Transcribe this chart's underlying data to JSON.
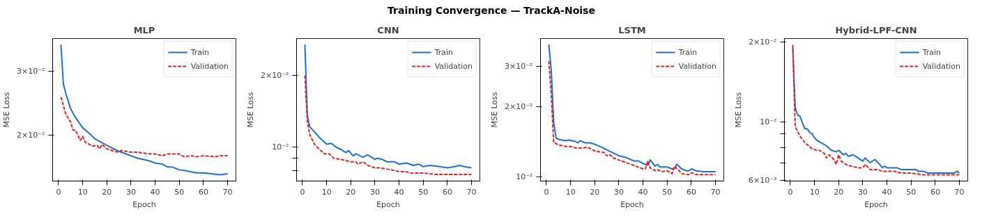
{
  "chart_data": [
    {
      "type": "line",
      "title": "MLP",
      "annotations": [
        "Training Convergence — TrackA-Noise"
      ],
      "xlabel": "Epoch",
      "ylabel": "MSE Loss",
      "log": "y",
      "grid": false,
      "legend": "top right",
      "xlim": [
        -2.45,
        73.45
      ],
      "xticks": [
        0,
        10,
        20,
        30,
        40,
        50,
        60,
        70
      ],
      "ylim": [
        0.015,
        0.0369
      ],
      "yticks": [
        {
          "value": 0.02,
          "label": "2×10⁻²"
        },
        {
          "value": 0.03,
          "label": "3×10⁻²"
        }
      ],
      "series": [
        {
          "name": "Train",
          "color": "#1f6fcf",
          "line_style": "solid",
          "x": [
            1,
            2,
            3,
            5,
            7,
            10,
            13,
            15,
            20,
            22,
            25,
            28,
            30,
            33,
            35,
            38,
            40,
            43,
            45,
            47,
            50,
            53,
            55,
            57,
            60,
            63,
            67,
            70
          ],
          "values": [
            0.0355,
            0.0277,
            0.0261,
            0.0237,
            0.0224,
            0.021,
            0.0202,
            0.0196,
            0.0188,
            0.0185,
            0.0181,
            0.0178,
            0.0176,
            0.0173,
            0.0172,
            0.017,
            0.0168,
            0.0167,
            0.0164,
            0.0164,
            0.0161,
            0.016,
            0.0159,
            0.0158,
            0.0158,
            0.0157,
            0.0156,
            0.0157
          ]
        },
        {
          "name": "Validation",
          "color": "#d62728",
          "line_style": "dashed",
          "x": [
            1,
            3,
            5,
            6,
            7,
            9,
            10,
            11,
            14,
            16,
            17,
            18,
            20,
            23,
            25,
            26,
            28,
            30,
            33,
            35,
            38,
            40,
            43,
            45,
            50,
            52,
            55,
            57,
            60,
            65,
            67,
            70
          ],
          "values": [
            0.0255,
            0.0229,
            0.0218,
            0.0207,
            0.0207,
            0.0194,
            0.0199,
            0.0192,
            0.0187,
            0.0188,
            0.0184,
            0.0189,
            0.0184,
            0.0181,
            0.018,
            0.0182,
            0.0181,
            0.018,
            0.018,
            0.0179,
            0.0178,
            0.0178,
            0.0176,
            0.0178,
            0.0178,
            0.0175,
            0.0176,
            0.0175,
            0.0176,
            0.0175,
            0.0176,
            0.0176
          ]
        }
      ]
    },
    {
      "type": "line",
      "title": "CNN",
      "xlabel": "Epoch",
      "ylabel": "MSE Loss",
      "log": "y",
      "grid": false,
      "legend": "top right",
      "xlim": [
        -2.45,
        73.45
      ],
      "xticks": [
        0,
        10,
        20,
        30,
        40,
        50,
        60,
        70
      ],
      "ylim": [
        0.00722,
        0.0286
      ],
      "yticks": [
        {
          "value": 0.008,
          "label": null
        },
        {
          "value": 0.009,
          "label": null
        },
        {
          "value": 0.01,
          "label": "10⁻²"
        },
        {
          "value": 0.02,
          "label": "2×10⁻²"
        }
      ],
      "series": [
        {
          "name": "Train",
          "color": "#1f6fcf",
          "line_style": "solid",
          "x": [
            1,
            2,
            3,
            5,
            7,
            10,
            12,
            14,
            16,
            18,
            19,
            21,
            22,
            25,
            27,
            30,
            31,
            33,
            35,
            38,
            40,
            43,
            46,
            48,
            50,
            53,
            57,
            60,
            63,
            65,
            67,
            70
          ],
          "values": [
            0.027,
            0.0137,
            0.0122,
            0.0116,
            0.011,
            0.0103,
            0.0104,
            0.01,
            0.0098,
            0.0095,
            0.0097,
            0.0092,
            0.0094,
            0.0091,
            0.0093,
            0.0089,
            0.009,
            0.0089,
            0.0087,
            0.0087,
            0.0085,
            0.0086,
            0.0084,
            0.0085,
            0.0083,
            0.0084,
            0.0083,
            0.0082,
            0.0083,
            0.0084,
            0.0083,
            0.0082
          ]
        },
        {
          "name": "Validation",
          "color": "#d62728",
          "line_style": "dashed",
          "x": [
            1,
            2,
            3,
            5,
            7,
            9,
            11,
            13,
            16,
            18,
            20,
            22,
            23,
            25,
            27,
            30,
            32,
            35,
            38,
            40,
            43,
            45,
            50,
            55,
            60,
            70
          ],
          "values": [
            0.02,
            0.0129,
            0.0113,
            0.0103,
            0.0098,
            0.0094,
            0.0094,
            0.009,
            0.0089,
            0.0088,
            0.0087,
            0.0087,
            0.0085,
            0.0087,
            0.0084,
            0.0082,
            0.0082,
            0.0081,
            0.008,
            0.0079,
            0.0079,
            0.0078,
            0.0078,
            0.0077,
            0.0077,
            0.0077
          ]
        }
      ]
    },
    {
      "type": "line",
      "title": "LSTM",
      "xlabel": "Epoch",
      "ylabel": "MSE Loss",
      "log": "y",
      "grid": false,
      "legend": "top right",
      "xlim": [
        -2.45,
        73.45
      ],
      "xticks": [
        0,
        10,
        20,
        30,
        40,
        50,
        60,
        70
      ],
      "ylim": [
        0.00957,
        0.0395
      ],
      "yticks": [
        {
          "value": 0.01,
          "label": "10⁻²"
        },
        {
          "value": 0.02,
          "label": "2×10⁻²"
        },
        {
          "value": 0.03,
          "label": "3×10⁻²"
        }
      ],
      "series": [
        {
          "name": "Train",
          "color": "#1f6fcf",
          "line_style": "solid",
          "x": [
            1,
            2,
            3,
            4,
            5,
            8,
            9,
            12,
            13,
            14,
            16,
            18,
            20,
            23,
            26,
            28,
            30,
            33,
            36,
            38,
            40,
            42,
            43,
            45,
            46,
            47,
            50,
            52,
            53,
            54,
            56,
            58,
            59,
            60,
            62,
            65,
            70
          ],
          "values": [
            0.0372,
            0.0289,
            0.0172,
            0.0147,
            0.0145,
            0.0143,
            0.0144,
            0.0142,
            0.014,
            0.0143,
            0.014,
            0.014,
            0.0138,
            0.0134,
            0.0129,
            0.0126,
            0.0123,
            0.0121,
            0.0117,
            0.0117,
            0.0114,
            0.0112,
            0.0118,
            0.0111,
            0.0113,
            0.011,
            0.011,
            0.0108,
            0.0108,
            0.0113,
            0.0108,
            0.0106,
            0.0106,
            0.0108,
            0.0106,
            0.0105,
            0.0105
          ]
        },
        {
          "name": "Validation",
          "color": "#d62728",
          "line_style": "dashed",
          "x": [
            1,
            2,
            3,
            5,
            8,
            10,
            12,
            15,
            17,
            20,
            22,
            24,
            25,
            26,
            28,
            30,
            33,
            36,
            38,
            40,
            41,
            42,
            43,
            45,
            46,
            48,
            50,
            52,
            53,
            55,
            56,
            59,
            60,
            62,
            70
          ],
          "values": [
            0.0316,
            0.0226,
            0.0141,
            0.0137,
            0.0135,
            0.0135,
            0.0133,
            0.0133,
            0.0134,
            0.0129,
            0.0128,
            0.0127,
            0.0123,
            0.0125,
            0.012,
            0.0118,
            0.0115,
            0.0112,
            0.011,
            0.0108,
            0.0108,
            0.0117,
            0.0109,
            0.0106,
            0.0107,
            0.0105,
            0.0106,
            0.0103,
            0.0111,
            0.0106,
            0.0103,
            0.0102,
            0.0104,
            0.0102,
            0.0102
          ]
        }
      ]
    },
    {
      "type": "line",
      "title": "Hybrid-LPF-CNN",
      "xlabel": "Epoch",
      "ylabel": "MSE Loss",
      "log": "y",
      "grid": false,
      "legend": "top right",
      "xlim": [
        -2.45,
        73.45
      ],
      "xticks": [
        0,
        10,
        20,
        30,
        40,
        50,
        60,
        70
      ],
      "ylim": [
        0.00597,
        0.0206
      ],
      "yticks": [
        {
          "value": 0.006,
          "label": "6×10⁻³"
        },
        {
          "value": 0.007,
          "label": null
        },
        {
          "value": 0.008,
          "label": null
        },
        {
          "value": 0.009,
          "label": null
        },
        {
          "value": 0.01,
          "label": "10⁻²"
        },
        {
          "value": 0.02,
          "label": "2×10⁻²"
        }
      ],
      "series": [
        {
          "name": "Train",
          "color": "#1f6fcf",
          "line_style": "solid",
          "x": [
            1,
            2,
            3,
            4,
            5,
            6,
            7,
            8,
            9,
            10,
            11,
            13,
            15,
            17,
            19,
            20,
            22,
            23,
            24,
            26,
            28,
            30,
            31,
            33,
            35,
            37,
            38,
            39,
            40,
            44,
            46,
            49,
            52,
            53,
            55,
            57,
            60,
            62,
            65,
            68,
            69,
            70
          ],
          "values": [
            0.019,
            0.0113,
            0.0106,
            0.0105,
            0.0099,
            0.0094,
            0.0094,
            0.0091,
            0.009,
            0.0087,
            0.0085,
            0.0083,
            0.0081,
            0.0078,
            0.0077,
            0.0078,
            0.0075,
            0.0076,
            0.0074,
            0.0075,
            0.0073,
            0.0071,
            0.0073,
            0.007,
            0.0072,
            0.0069,
            0.0067,
            0.0068,
            0.0067,
            0.0067,
            0.0066,
            0.0066,
            0.0066,
            0.0065,
            0.0065,
            0.0064,
            0.0064,
            0.0064,
            0.0064,
            0.0064,
            0.0065,
            0.0064
          ]
        },
        {
          "name": "Validation",
          "color": "#d62728",
          "line_style": "dashed",
          "x": [
            1,
            2,
            3,
            4,
            5,
            6,
            7,
            9,
            11,
            12,
            14,
            15,
            16,
            18,
            19,
            20,
            21,
            23,
            25,
            28,
            30,
            31,
            33,
            36,
            38,
            40,
            43,
            46,
            50,
            55,
            60,
            61,
            70
          ],
          "values": [
            0.0195,
            0.0096,
            0.0092,
            0.0088,
            0.0086,
            0.0083,
            0.0082,
            0.0079,
            0.0078,
            0.0078,
            0.0076,
            0.0073,
            0.0075,
            0.0072,
            0.0069,
            0.0075,
            0.0071,
            0.0069,
            0.0068,
            0.0067,
            0.0067,
            0.0069,
            0.0066,
            0.0066,
            0.0065,
            0.0065,
            0.0065,
            0.0064,
            0.0064,
            0.0063,
            0.0063,
            0.0063,
            0.0063
          ]
        }
      ]
    }
  ]
}
